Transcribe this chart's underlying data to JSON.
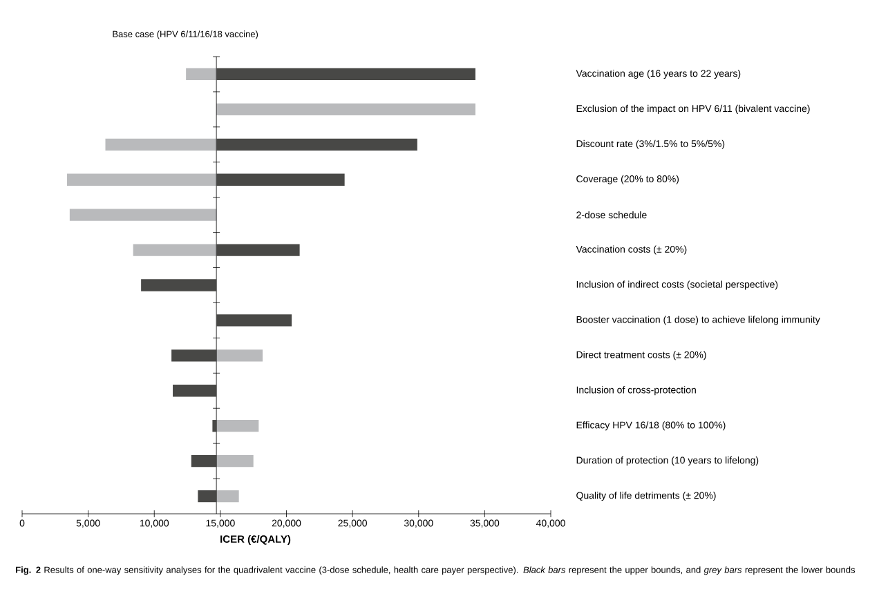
{
  "chart_data": {
    "type": "bar",
    "orientation": "horizontal",
    "categories": [
      "Vaccination age (16 years to 22 years)",
      "Exclusion of the impact on HPV 6/11 (bivalent vaccine)",
      "Discount rate (3%/1.5% to 5%/5%)",
      "Coverage (20% to 80%)",
      "2-dose schedule",
      "Vaccination costs (± 20%)",
      "Inclusion of indirect costs (societal perspective)",
      "Booster vaccination (1 dose) to achieve lifelong immunity",
      "Direct treatment costs (± 20%)",
      "Inclusion of cross-protection",
      "Efficacy HPV 16/18 (80% to 100%)",
      "Duration of protection (10 years to lifelong)",
      "Quality of life detriments (± 20%)"
    ],
    "series": [
      {
        "color": "#484846",
        "base": [
          14700,
          null,
          14700,
          14700,
          null,
          14700,
          14700,
          14700,
          14700,
          14700,
          14700,
          14700,
          14700
        ],
        "values": [
          19600,
          null,
          15200,
          9700,
          null,
          6300,
          -5700,
          5700,
          -3400,
          -3300,
          -300,
          -1900,
          -1400
        ]
      },
      {
        "color": "#b9babc",
        "base": [
          14700,
          14700,
          14700,
          14700,
          14700,
          14700,
          null,
          null,
          14700,
          null,
          14700,
          14700,
          14700
        ],
        "values": [
          -2300,
          19600,
          -8400,
          -11300,
          -11100,
          -6300,
          null,
          null,
          3500,
          null,
          3200,
          2800,
          1700
        ]
      }
    ],
    "xlabel": "ICER (€/QALY)",
    "xlim": [
      0,
      40000
    ],
    "xticks": [
      0,
      {
        "value": 5000,
        "label": "5,000"
      },
      {
        "value": 10000,
        "label": "10,000"
      },
      {
        "value": 15000,
        "label": "15,000"
      },
      {
        "value": 20000,
        "label": "20,000"
      },
      {
        "value": 25000,
        "label": "25,000"
      },
      {
        "value": 30000,
        "label": "30,000"
      },
      {
        "value": 35000,
        "label": "35,000"
      },
      {
        "value": 40000,
        "label": "40,000"
      }
    ],
    "ref_lines": [
      {
        "axis": "x",
        "value": 14700,
        "label": "Base case (HPV 6/11/16/18 vaccine)",
        "color": "#000000"
      }
    ],
    "annotations": [
      "**Fig. 2** Results of one-way sensitivity analyses for the quadrivalent vaccine (3-dose schedule, health care payer perspective). *Black bars* represent the upper bounds, and *grey bars* represent the lower bounds"
    ]
  }
}
